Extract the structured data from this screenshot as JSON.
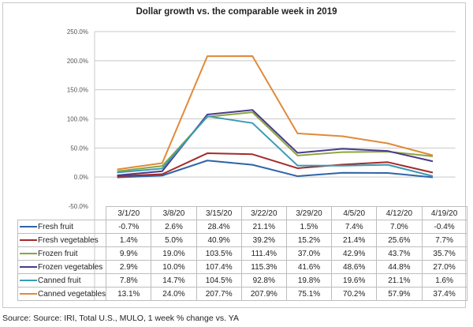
{
  "chart_data": {
    "type": "line",
    "title": "Dollar growth vs. the comparable week in 2019",
    "xlabel": "",
    "ylabel": "",
    "categories": [
      "3/1/20",
      "3/8/20",
      "3/15/20",
      "3/22/20",
      "3/29/20",
      "4/5/20",
      "4/12/20",
      "4/19/20"
    ],
    "ylim": [
      -50,
      250
    ],
    "yticks": [
      "250.0%",
      "200.0%",
      "150.0%",
      "100.0%",
      "50.0%",
      "0.0%",
      "-50.0%"
    ],
    "ytick_values": [
      250,
      200,
      150,
      100,
      50,
      0,
      -50
    ],
    "grid": true,
    "legend": "data-table-below",
    "series": [
      {
        "name": "Fresh fruit",
        "color": "#2e64a8",
        "values": [
          -0.7,
          2.6,
          28.4,
          21.1,
          1.5,
          7.4,
          7.0,
          -0.4
        ],
        "labels": [
          "-0.7%",
          "2.6%",
          "28.4%",
          "21.1%",
          "1.5%",
          "7.4%",
          "7.0%",
          "-0.4%"
        ]
      },
      {
        "name": "Fresh vegetables",
        "color": "#a52a2a",
        "values": [
          1.4,
          5.0,
          40.9,
          39.2,
          15.2,
          21.4,
          25.6,
          7.7
        ],
        "labels": [
          "1.4%",
          "5.0%",
          "40.9%",
          "39.2%",
          "15.2%",
          "21.4%",
          "25.6%",
          "7.7%"
        ]
      },
      {
        "name": "Frozen fruit",
        "color": "#8aa63c",
        "values": [
          9.9,
          19.0,
          103.5,
          111.4,
          37.0,
          42.9,
          43.7,
          35.7
        ],
        "labels": [
          "9.9%",
          "19.0%",
          "103.5%",
          "111.4%",
          "37.0%",
          "42.9%",
          "43.7%",
          "35.7%"
        ]
      },
      {
        "name": "Frozen vegetables",
        "color": "#4b3a8c",
        "values": [
          2.9,
          10.0,
          107.4,
          115.3,
          41.6,
          48.6,
          44.8,
          27.0
        ],
        "labels": [
          "2.9%",
          "10.0%",
          "107.4%",
          "115.3%",
          "41.6%",
          "48.6%",
          "44.8%",
          "27.0%"
        ]
      },
      {
        "name": "Canned fruit",
        "color": "#3a9ab5",
        "values": [
          7.8,
          14.7,
          104.5,
          92.8,
          19.8,
          19.6,
          21.1,
          1.6
        ],
        "labels": [
          "7.8%",
          "14.7%",
          "104.5%",
          "92.8%",
          "19.8%",
          "19.6%",
          "21.1%",
          "1.6%"
        ]
      },
      {
        "name": "Canned vegetables",
        "color": "#e08a3a",
        "values": [
          13.1,
          24.0,
          207.7,
          207.9,
          75.1,
          70.2,
          57.9,
          37.4
        ],
        "labels": [
          "13.1%",
          "24.0%",
          "207.7%",
          "207.9%",
          "75.1%",
          "70.2%",
          "57.9%",
          "37.4%"
        ]
      }
    ]
  },
  "source": "Source: Source: IRI, Total U.S., MULO, 1 week % change vs. YA"
}
